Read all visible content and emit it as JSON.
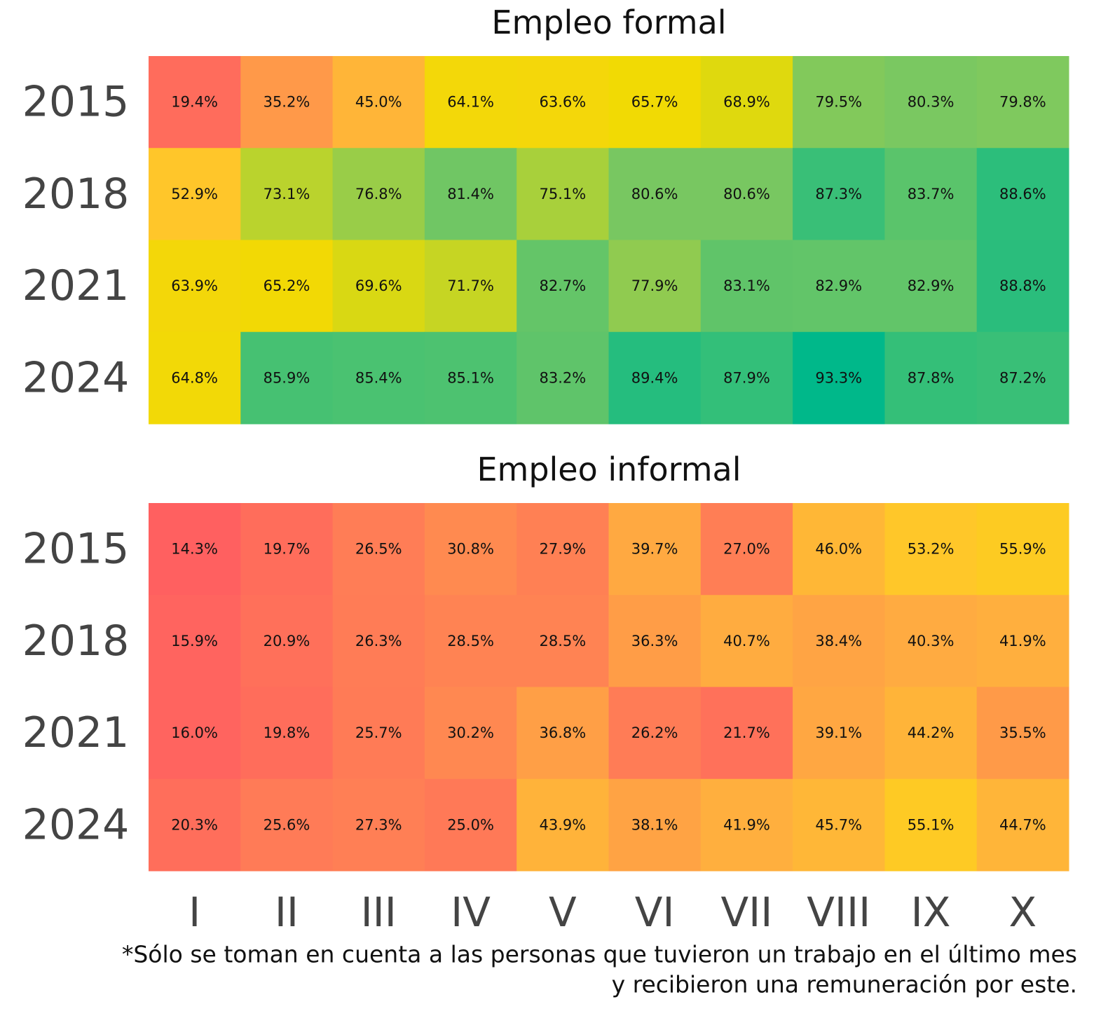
{
  "chart_data": [
    {
      "type": "heatmap",
      "title": "Empleo formal",
      "rows": [
        "2015",
        "2018",
        "2021",
        "2024"
      ],
      "values": [
        [
          19.4,
          35.2,
          45.0,
          64.1,
          63.6,
          65.7,
          68.9,
          79.5,
          80.3,
          79.8
        ],
        [
          52.9,
          73.1,
          76.8,
          81.4,
          75.1,
          80.6,
          80.6,
          87.3,
          83.7,
          88.6
        ],
        [
          63.9,
          65.2,
          69.6,
          71.7,
          82.7,
          77.9,
          83.1,
          82.9,
          82.9,
          88.8
        ],
        [
          64.8,
          85.9,
          85.4,
          85.1,
          83.2,
          89.4,
          87.9,
          93.3,
          87.8,
          87.2
        ]
      ],
      "value_labels": [
        [
          "19.4%",
          "35.2%",
          "45.0%",
          "64.1%",
          "63.6%",
          "65.7%",
          "68.9%",
          "79.5%",
          "80.3%",
          "79.8%"
        ],
        [
          "52.9%",
          "73.1%",
          "76.8%",
          "81.4%",
          "75.1%",
          "80.6%",
          "80.6%",
          "87.3%",
          "83.7%",
          "88.6%"
        ],
        [
          "63.9%",
          "65.2%",
          "69.6%",
          "71.7%",
          "82.7%",
          "77.9%",
          "83.1%",
          "82.9%",
          "82.9%",
          "88.8%"
        ],
        [
          "64.8%",
          "85.9%",
          "85.4%",
          "85.1%",
          "83.2%",
          "89.4%",
          "87.9%",
          "93.3%",
          "87.8%",
          "87.2%"
        ]
      ]
    },
    {
      "type": "heatmap",
      "title": "Empleo informal",
      "rows": [
        "2015",
        "2018",
        "2021",
        "2024"
      ],
      "categories": [
        "I",
        "II",
        "III",
        "IV",
        "V",
        "VI",
        "VII",
        "VIII",
        "IX",
        "X"
      ],
      "values": [
        [
          14.3,
          19.7,
          26.5,
          30.8,
          27.9,
          39.7,
          27.0,
          46.0,
          53.2,
          55.9
        ],
        [
          15.9,
          20.9,
          26.3,
          28.5,
          28.5,
          36.3,
          40.7,
          38.4,
          40.3,
          41.9
        ],
        [
          16.0,
          19.8,
          25.7,
          30.2,
          36.8,
          26.2,
          21.7,
          39.1,
          44.2,
          35.5
        ],
        [
          20.3,
          25.6,
          27.3,
          25.0,
          43.9,
          38.1,
          41.9,
          45.7,
          55.1,
          44.7
        ]
      ],
      "value_labels": [
        [
          "14.3%",
          "19.7%",
          "26.5%",
          "30.8%",
          "27.9%",
          "39.7%",
          "27.0%",
          "46.0%",
          "53.2%",
          "55.9%"
        ],
        [
          "15.9%",
          "20.9%",
          "26.3%",
          "28.5%",
          "28.5%",
          "36.3%",
          "40.7%",
          "38.4%",
          "40.3%",
          "41.9%"
        ],
        [
          "16.0%",
          "19.8%",
          "25.7%",
          "30.2%",
          "36.8%",
          "26.2%",
          "21.7%",
          "39.1%",
          "44.2%",
          "35.5%"
        ],
        [
          "20.3%",
          "25.6%",
          "27.3%",
          "25.0%",
          "43.9%",
          "38.1%",
          "41.9%",
          "45.7%",
          "55.1%",
          "44.7%"
        ]
      ]
    }
  ],
  "colorscale": [
    "#ff6060",
    "#ff7f55",
    "#ffac40",
    "#ffc828",
    "#f0dc00",
    "#7cc860",
    "#00b88a"
  ],
  "footnote": [
    "*Sólo se toman en cuenta a las personas que tuvieron un trabajo en el último mes",
    "y recibieron una remuneración por este."
  ]
}
